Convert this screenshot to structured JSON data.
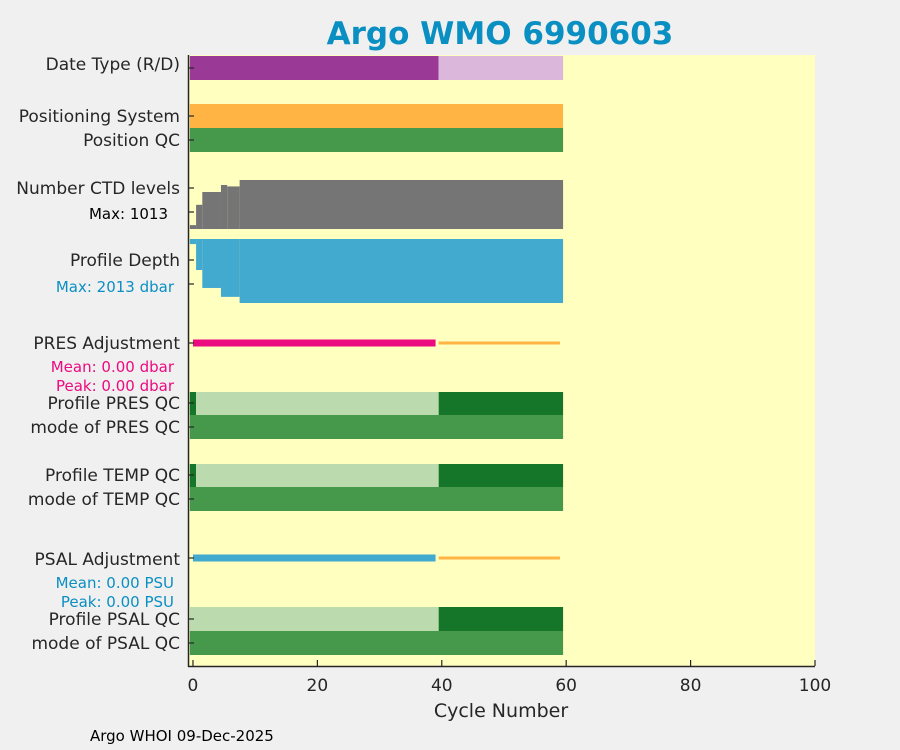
{
  "chart_data": {
    "type": "bar",
    "title": "Argo WMO 6990603",
    "xlabel": "Cycle Number",
    "xlim": [
      -0.8,
      100
    ],
    "xticks": [
      "0",
      "20",
      "40",
      "60",
      "80",
      "100"
    ],
    "xtick_values": [
      0,
      20,
      40,
      60,
      80,
      100
    ],
    "footer": "Argo WHOI 09-Dec-2025",
    "colors": {
      "title": "#0a8fc2",
      "plot_bg": "#ffffc0",
      "R": "#9b3a96",
      "D": "#dbb7db",
      "positioning": "#ffb443",
      "qc_good": "#46984a",
      "qc_dark": "#157629",
      "qc_light": "#bbdaae",
      "ctd": "#757575",
      "depth": "#42a9cf",
      "pres_adj": "#ec0a80",
      "psal_adj": "#42a9cf",
      "adj_d": "#ffb443"
    },
    "labels": {
      "date_type": "Date Type (R/D)",
      "positioning": "Positioning System",
      "position_qc": "Position QC",
      "ctd_levels": "Number CTD levels",
      "ctd_max": "Max: 1013",
      "profile_depth": "Profile Depth",
      "depth_max": "Max: 2013 dbar",
      "pres_adj": "PRES Adjustment",
      "pres_mean": "Mean: 0.00 dbar",
      "pres_peak": "Peak: 0.00 dbar",
      "pres_qc": "Profile PRES QC",
      "pres_mode": "mode of PRES QC",
      "temp_qc": "Profile TEMP QC",
      "temp_mode": "mode of TEMP QC",
      "psal_adj": "PSAL Adjustment",
      "psal_mean": "Mean: 0.00 PSU",
      "psal_peak": "Peak: 0.00 PSU",
      "psal_qc": "Profile PSAL QC",
      "psal_mode": "mode of PSAL QC"
    },
    "ctd_max": 1013,
    "depth_max": 2013,
    "date_type": [
      {
        "from": 0,
        "to": 39,
        "value": "R"
      },
      {
        "from": 40,
        "to": 59,
        "value": "D"
      }
    ],
    "positioning": [
      {
        "from": 0,
        "to": 59,
        "value": "GPS"
      }
    ],
    "position_qc": [
      {
        "from": 0,
        "to": 59,
        "value": "good"
      }
    ],
    "ctd_levels": [
      {
        "from": 0,
        "to": 0,
        "value": 80
      },
      {
        "from": 1,
        "to": 1,
        "value": 500
      },
      {
        "from": 2,
        "to": 4,
        "value": 765
      },
      {
        "from": 5,
        "to": 5,
        "value": 910
      },
      {
        "from": 6,
        "to": 7,
        "value": 880
      },
      {
        "from": 8,
        "to": 59,
        "value": 1013
      }
    ],
    "profile_depth": [
      {
        "from": 0,
        "to": 0,
        "value": 160
      },
      {
        "from": 1,
        "to": 1,
        "value": 975
      },
      {
        "from": 2,
        "to": 4,
        "value": 1540
      },
      {
        "from": 5,
        "to": 7,
        "value": 1820
      },
      {
        "from": 8,
        "to": 59,
        "value": 2013
      }
    ],
    "pres_adjustment": [
      {
        "from": 0,
        "to": 39,
        "value": 0.0,
        "mode": "R"
      },
      {
        "from": 40,
        "to": 59,
        "value": 0.0,
        "mode": "D"
      }
    ],
    "pres_qc": [
      {
        "from": 0,
        "to": 0,
        "value": "dark"
      },
      {
        "from": 1,
        "to": 39,
        "value": "light"
      },
      {
        "from": 40,
        "to": 59,
        "value": "dark"
      }
    ],
    "pres_mode": [
      {
        "from": 0,
        "to": 59,
        "value": "good"
      }
    ],
    "temp_qc": [
      {
        "from": 0,
        "to": 0,
        "value": "dark"
      },
      {
        "from": 1,
        "to": 39,
        "value": "light"
      },
      {
        "from": 40,
        "to": 59,
        "value": "dark"
      }
    ],
    "temp_mode": [
      {
        "from": 0,
        "to": 59,
        "value": "good"
      }
    ],
    "psal_adjustment": [
      {
        "from": 0,
        "to": 39,
        "value": 0.0,
        "mode": "R"
      },
      {
        "from": 40,
        "to": 59,
        "value": 0.0,
        "mode": "D"
      }
    ],
    "psal_qc": [
      {
        "from": 0,
        "to": 39,
        "value": "light"
      },
      {
        "from": 40,
        "to": 59,
        "value": "dark"
      }
    ],
    "psal_mode": [
      {
        "from": 0,
        "to": 59,
        "value": "good"
      }
    ]
  }
}
